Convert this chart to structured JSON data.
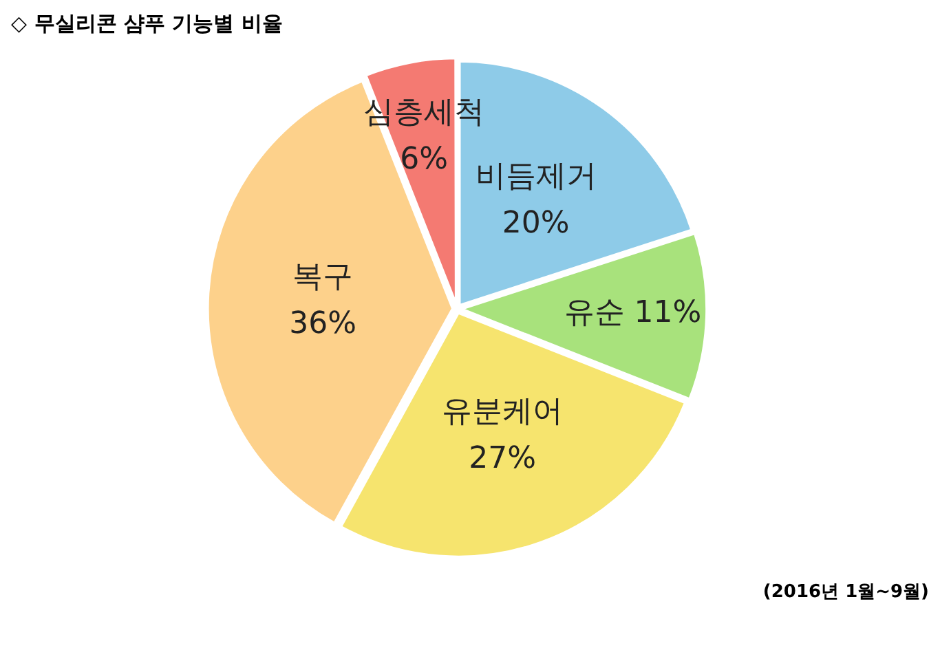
{
  "chart_data": {
    "type": "pie",
    "title": "◇ 무실리콘 샴푸 기능별 비율",
    "categories": [
      "비듬제거",
      "유순",
      "유분케어",
      "복구",
      "심층세척"
    ],
    "values": [
      20,
      11,
      27,
      36,
      6
    ],
    "colors": [
      "#8ecbe8",
      "#a8e27c",
      "#f6e46e",
      "#fdd18b",
      "#f47a72"
    ],
    "value_labels": [
      "20%",
      "11%",
      "27%",
      "36%",
      "6%"
    ],
    "legend": false,
    "annotations": [
      "(2016년 1월~9월)"
    ]
  }
}
